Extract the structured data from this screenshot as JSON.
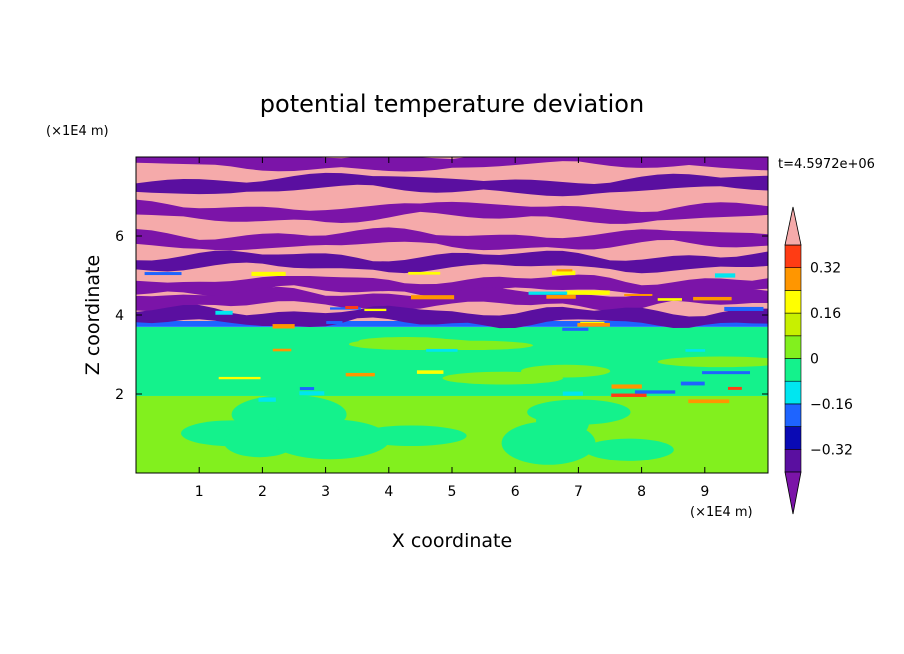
{
  "chart_data": {
    "type": "heatmap",
    "title": "potential temperature deviation",
    "xlabel": "X coordinate",
    "ylabel": "Z coordinate",
    "x_unit": "(×1E4 m)",
    "y_unit": "(×1E4 m)",
    "time_label": "t=4.5972e+06",
    "xlim": [
      0,
      10
    ],
    "ylim": [
      0,
      8
    ],
    "x_ticks": [
      "1",
      "2",
      "3",
      "4",
      "5",
      "6",
      "7",
      "8",
      "9"
    ],
    "y_ticks": [
      "2",
      "4",
      "6"
    ],
    "colorbar": {
      "tick_labels": [
        "0.32",
        "0.16",
        "0",
        "−0.16",
        "−0.32"
      ],
      "tick_values": [
        0.32,
        0.16,
        0,
        -0.16,
        -0.32
      ],
      "levels": [
        {
          "lo": -99,
          "hi": -0.4,
          "color": "#7b14a8"
        },
        {
          "lo": -0.4,
          "hi": -0.32,
          "color": "#5a0fa0"
        },
        {
          "lo": -0.32,
          "hi": -0.24,
          "color": "#0a0ab4"
        },
        {
          "lo": -0.24,
          "hi": -0.16,
          "color": "#1e64ff"
        },
        {
          "lo": -0.16,
          "hi": -0.08,
          "color": "#00e6f0"
        },
        {
          "lo": -0.08,
          "hi": 0,
          "color": "#14f28c"
        },
        {
          "lo": 0,
          "hi": 0.08,
          "color": "#82f01e"
        },
        {
          "lo": 0.08,
          "hi": 0.16,
          "color": "#c8f000"
        },
        {
          "lo": 0.16,
          "hi": 0.24,
          "color": "#ffff00"
        },
        {
          "lo": 0.24,
          "hi": 0.32,
          "color": "#ff9600"
        },
        {
          "lo": 0.32,
          "hi": 0.4,
          "color": "#ff3c14"
        },
        {
          "lo": 0.4,
          "hi": 99,
          "color": "#f5aaaa"
        }
      ]
    },
    "layers": [
      {
        "z": [
          0,
          1.95
        ],
        "value": 0.04,
        "color": "#82f01e"
      },
      {
        "z": [
          1.95,
          3.7
        ],
        "value": -0.04,
        "color": "#14f28c"
      },
      {
        "z": [
          3.7,
          3.85
        ],
        "value": -0.2,
        "color": "#1e64ff"
      },
      {
        "z": [
          3.85,
          8
        ],
        "value": 0.45,
        "color": "#f5aaaa"
      }
    ],
    "purple_bands_z": [
      7.9,
      7.3,
      6.6,
      5.9,
      5.35,
      4.75,
      4.4,
      3.95
    ]
  }
}
